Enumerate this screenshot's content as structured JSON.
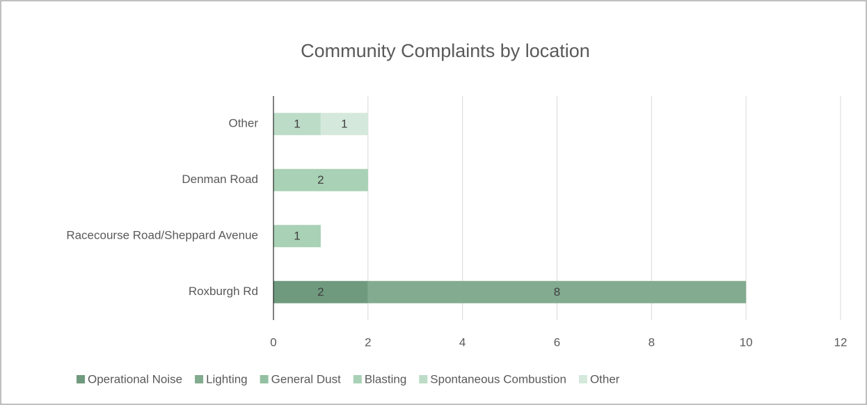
{
  "chart_data": {
    "type": "stacked-bar-horizontal",
    "title": "Community Complaints by location",
    "categories": [
      "Roxburgh Rd",
      "Racecourse Road/Sheppard Avenue",
      "Denman Road",
      "Other"
    ],
    "series": [
      {
        "name": "Operational Noise",
        "color": "#6f9a7e",
        "values": [
          2,
          null,
          null,
          null
        ]
      },
      {
        "name": "Lighting",
        "color": "#82ab8f",
        "values": [
          8,
          null,
          null,
          null
        ]
      },
      {
        "name": "General Dust",
        "color": "#93c0a1",
        "values": [
          null,
          null,
          null,
          null
        ]
      },
      {
        "name": "Blasting",
        "color": "#a9d1b5",
        "values": [
          null,
          1,
          2,
          null
        ]
      },
      {
        "name": "Spontaneous Combustion",
        "color": "#bddcc8",
        "values": [
          null,
          null,
          null,
          1
        ]
      },
      {
        "name": "Other",
        "color": "#d4e9dc",
        "values": [
          null,
          null,
          null,
          1
        ]
      }
    ],
    "xlim": [
      0,
      12
    ],
    "xticks": [
      0,
      2,
      4,
      6,
      8,
      10,
      12
    ],
    "grid": true,
    "legend": "bottom"
  }
}
